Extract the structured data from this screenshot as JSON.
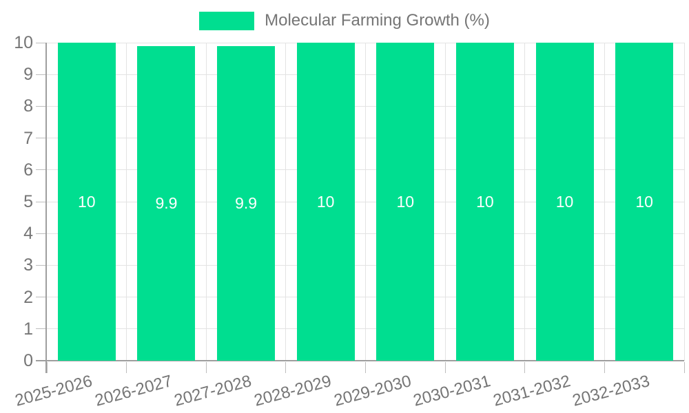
{
  "chart_data": {
    "type": "bar",
    "title": "Molecular Farming Growth (%)",
    "categories": [
      "2025-2026",
      "2026-2027",
      "2027-2028",
      "2028-2029",
      "2029-2030",
      "2030-2031",
      "2031-2032",
      "2032-2033"
    ],
    "values": [
      10,
      9.9,
      9.9,
      10,
      10,
      10,
      10,
      10
    ],
    "value_labels": [
      "10",
      "9.9",
      "9.9",
      "10",
      "10",
      "10",
      "10",
      "10"
    ],
    "xlabel": "",
    "ylabel": "",
    "ylim": [
      0,
      10
    ],
    "yticks": [
      0,
      1,
      2,
      3,
      4,
      5,
      6,
      7,
      8,
      9,
      10
    ],
    "grid": true,
    "legend_position": "top",
    "x_label_rotation_deg": -15,
    "colors": {
      "bar": "#00DE90",
      "grid": "#e3e3e3",
      "axis": "#9e9e9e",
      "tick": "#bdbdbd",
      "text": "#757575",
      "value_label": "#ffffff",
      "background": "#ffffff"
    }
  }
}
